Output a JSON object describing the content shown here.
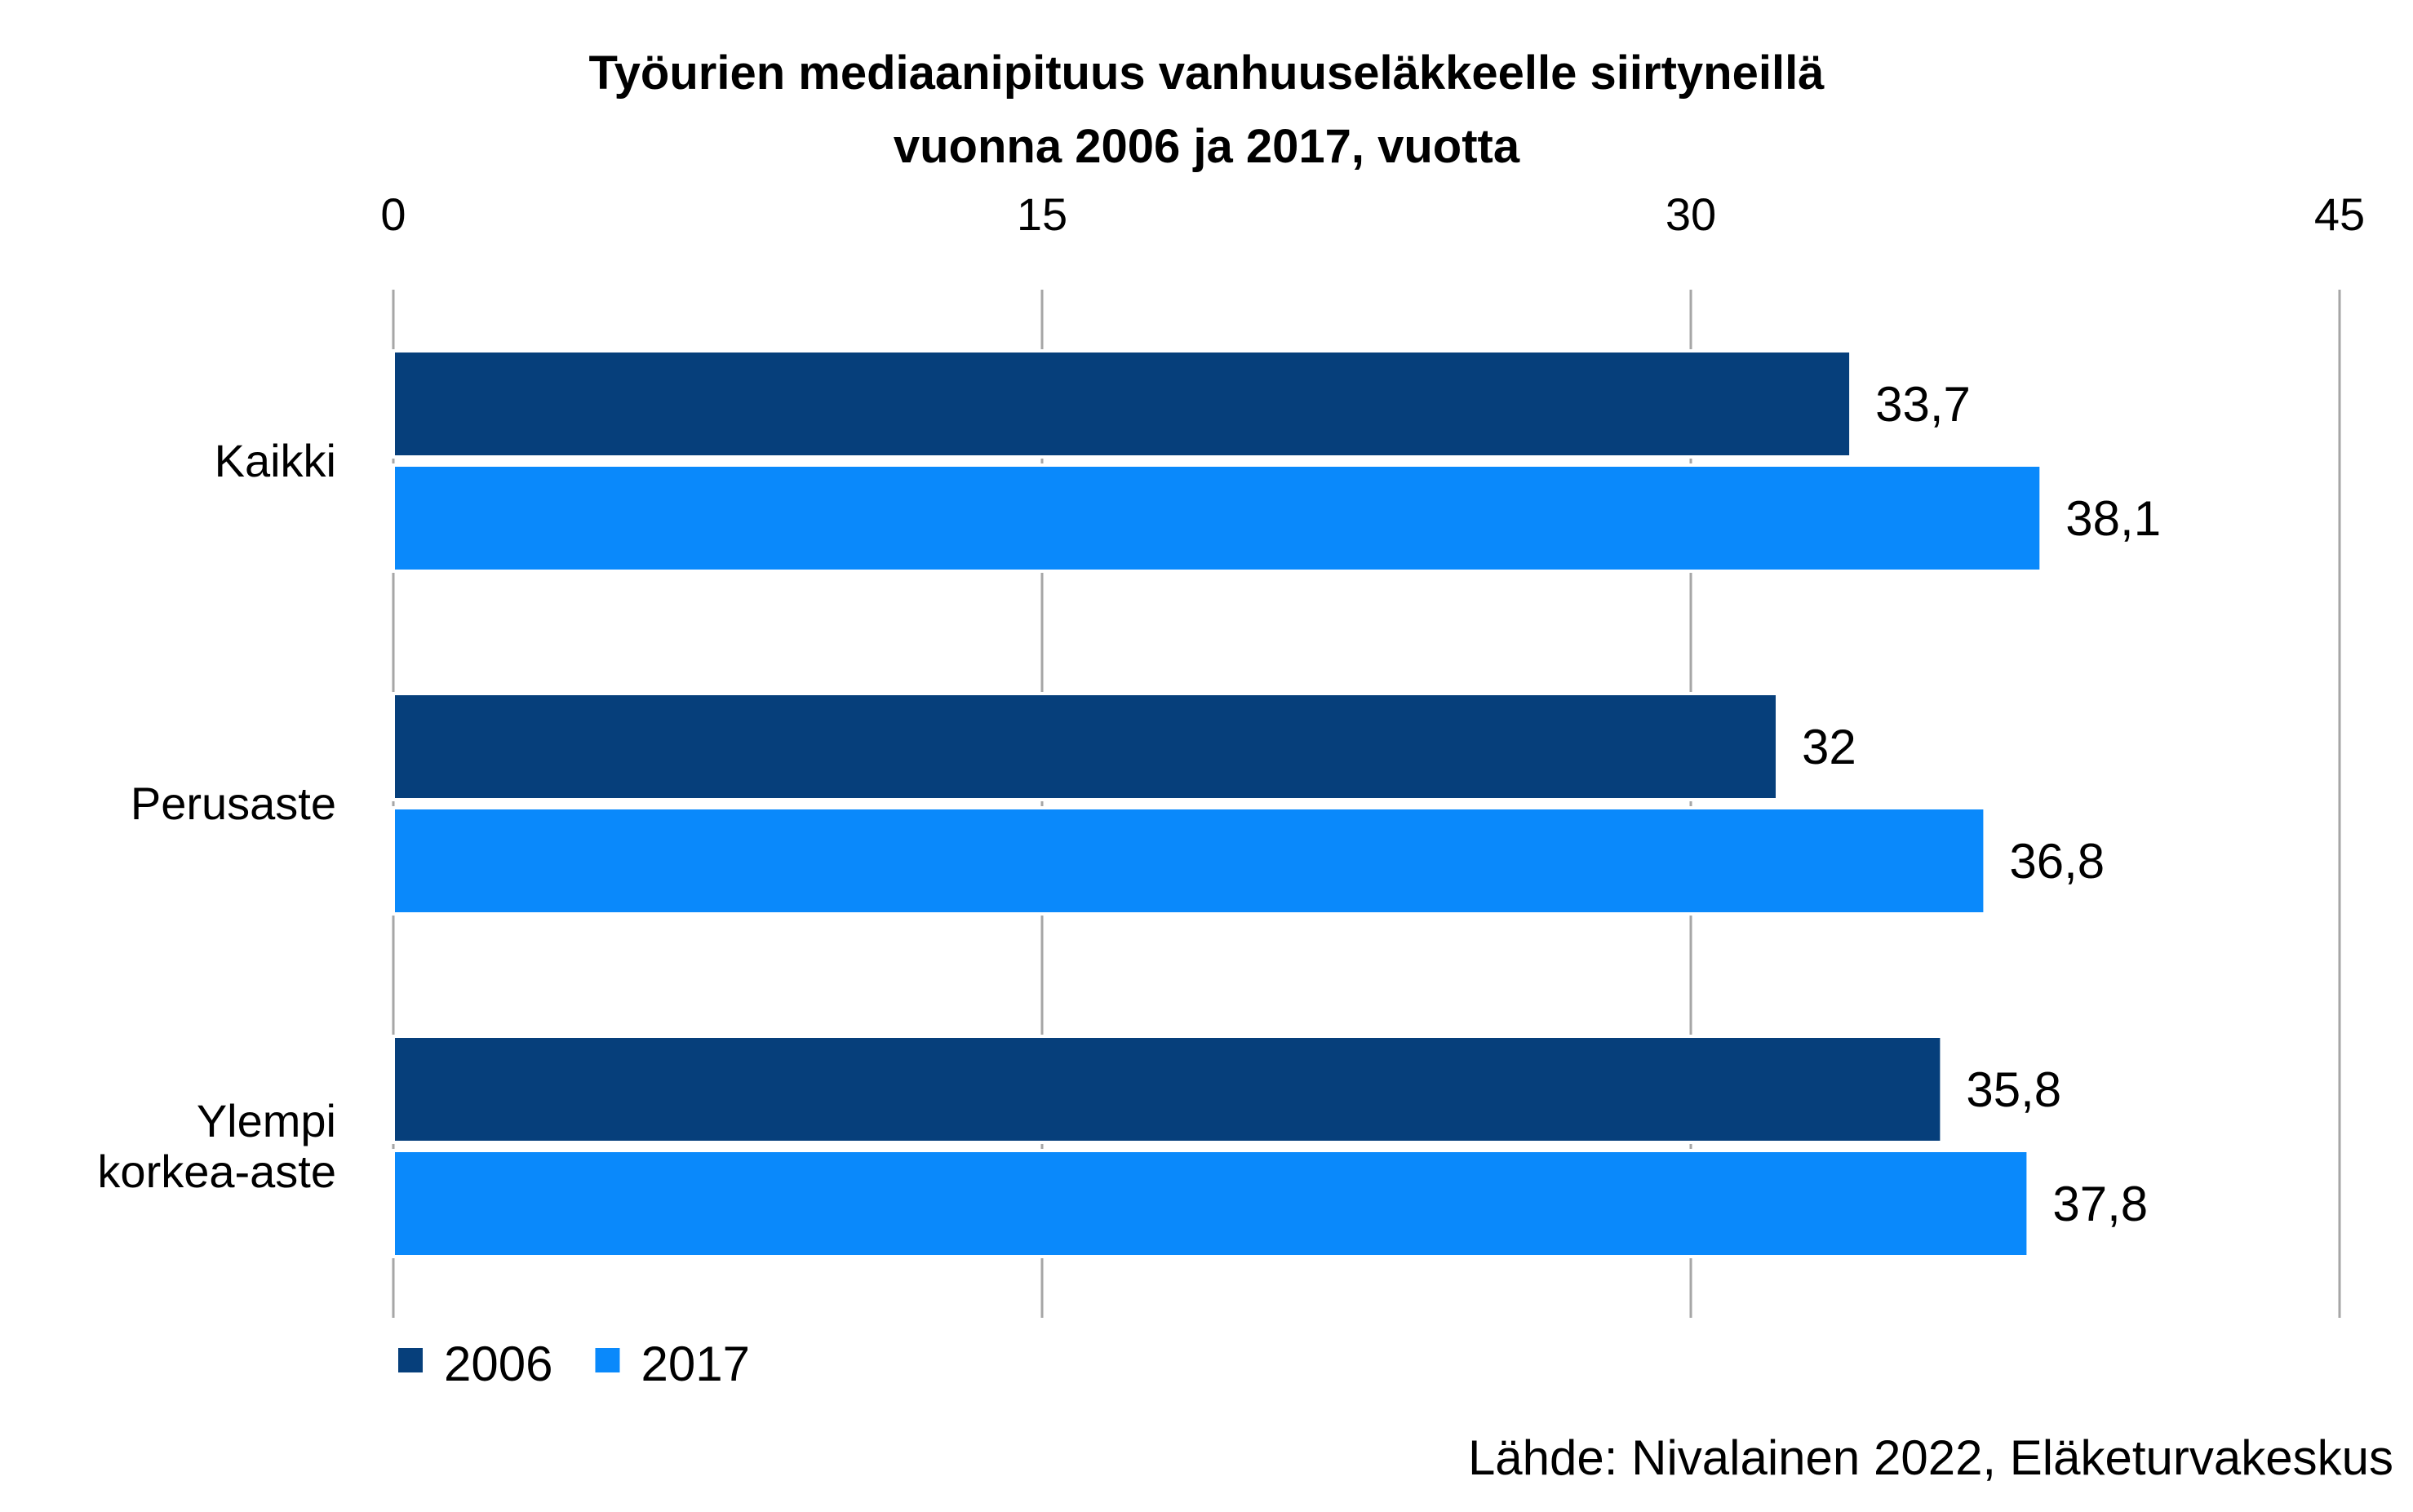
{
  "colors": {
    "series_2006": "#063f7b",
    "series_2017": "#0a89fb",
    "grid": "#a6a6a6"
  },
  "chart_data": {
    "type": "bar",
    "orientation": "horizontal",
    "title_lines": [
      "Työurien mediaanipituus vanhuuseläkkeelle siirtyneillä",
      "vuonna 2006 ja 2017, vuotta"
    ],
    "categories": [
      [
        "Kaikki"
      ],
      [
        "Perusaste"
      ],
      [
        "Ylempi",
        "korkea-aste"
      ]
    ],
    "series": [
      {
        "name": "2006",
        "values": [
          33.7,
          32,
          35.8
        ],
        "labels": [
          "33,7",
          "32",
          "35,8"
        ]
      },
      {
        "name": "2017",
        "values": [
          38.1,
          36.8,
          37.8
        ],
        "labels": [
          "38,1",
          "36,8",
          "37,8"
        ]
      }
    ],
    "xlim": [
      0,
      45
    ],
    "xticks": [
      0,
      15,
      30,
      45
    ],
    "axis_position": "top",
    "grid": true,
    "legend_position": "bottom-left"
  },
  "source": "Lähde: Nivalainen 2022, Eläketurvakeskus"
}
